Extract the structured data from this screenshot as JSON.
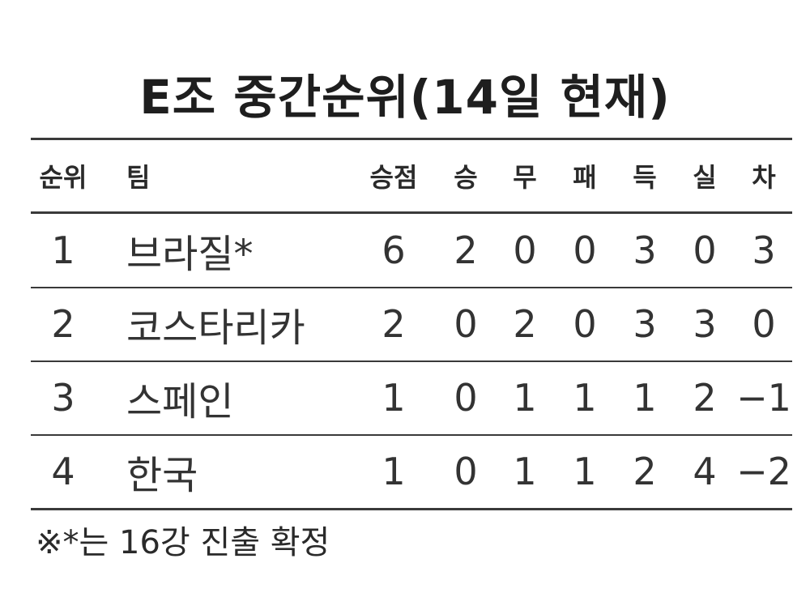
{
  "title": "E조 중간순위(14일 현재)",
  "columns": {
    "rank": "순위",
    "team": "팀",
    "points": "승점",
    "win": "승",
    "draw": "무",
    "loss": "패",
    "goals_for": "득",
    "goals_against": "실",
    "goal_diff": "차"
  },
  "rows": [
    {
      "rank": "1",
      "team": "브라질*",
      "points": "6",
      "win": "2",
      "draw": "0",
      "loss": "0",
      "goals_for": "3",
      "goals_against": "0",
      "goal_diff": "3"
    },
    {
      "rank": "2",
      "team": "코스타리카",
      "points": "2",
      "win": "0",
      "draw": "2",
      "loss": "0",
      "goals_for": "3",
      "goals_against": "3",
      "goal_diff": "0"
    },
    {
      "rank": "3",
      "team": "스페인",
      "points": "1",
      "win": "0",
      "draw": "1",
      "loss": "1",
      "goals_for": "1",
      "goals_against": "2",
      "goal_diff": "−1"
    },
    {
      "rank": "4",
      "team": "한국",
      "points": "1",
      "win": "0",
      "draw": "1",
      "loss": "1",
      "goals_for": "2",
      "goals_against": "4",
      "goal_diff": "−2"
    }
  ],
  "footnote": "※*는 16강 진출 확정"
}
